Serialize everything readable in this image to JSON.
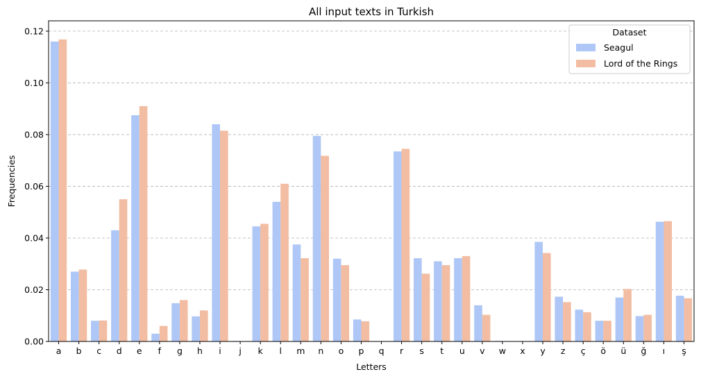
{
  "chart_data": {
    "type": "bar",
    "title": "All input texts in Turkish",
    "xlabel": "Letters",
    "ylabel": "Frequencies",
    "ylim": [
      0,
      0.124
    ],
    "yticks": [
      0.0,
      0.02,
      0.04,
      0.06,
      0.08,
      0.1,
      0.12
    ],
    "ytick_labels": [
      "0.00",
      "0.02",
      "0.04",
      "0.06",
      "0.08",
      "0.10",
      "0.12"
    ],
    "grid": "y, dashed",
    "legend": {
      "title": "Dataset",
      "placement": "top-right"
    },
    "categories": [
      "a",
      "b",
      "c",
      "d",
      "e",
      "f",
      "g",
      "h",
      "i",
      "j",
      "k",
      "l",
      "m",
      "n",
      "o",
      "p",
      "q",
      "r",
      "s",
      "t",
      "u",
      "v",
      "w",
      "x",
      "y",
      "z",
      "ç",
      "ö",
      "ü",
      "ğ",
      "ı",
      "ş"
    ],
    "series": [
      {
        "name": "Seagul",
        "color": "#aec7f6",
        "values": [
          0.116,
          0.027,
          0.008,
          0.043,
          0.0875,
          0.003,
          0.0148,
          0.0097,
          0.084,
          0.0002,
          0.0445,
          0.054,
          0.0375,
          0.0795,
          0.032,
          0.0085,
          0.0,
          0.0735,
          0.0322,
          0.031,
          0.0322,
          0.014,
          0.0002,
          0.0,
          0.0385,
          0.0173,
          0.0123,
          0.008,
          0.017,
          0.0098,
          0.0463,
          0.0177
        ]
      },
      {
        "name": "Lord of the Rings",
        "color": "#f2bda2",
        "values": [
          0.1168,
          0.0278,
          0.0081,
          0.055,
          0.091,
          0.006,
          0.016,
          0.012,
          0.0815,
          0.0001,
          0.0455,
          0.061,
          0.0322,
          0.0718,
          0.0295,
          0.0078,
          0.0,
          0.0745,
          0.0262,
          0.0295,
          0.033,
          0.0103,
          0.0001,
          0.0,
          0.0342,
          0.0152,
          0.0113,
          0.008,
          0.0203,
          0.0103,
          0.0465,
          0.0167
        ]
      }
    ]
  }
}
